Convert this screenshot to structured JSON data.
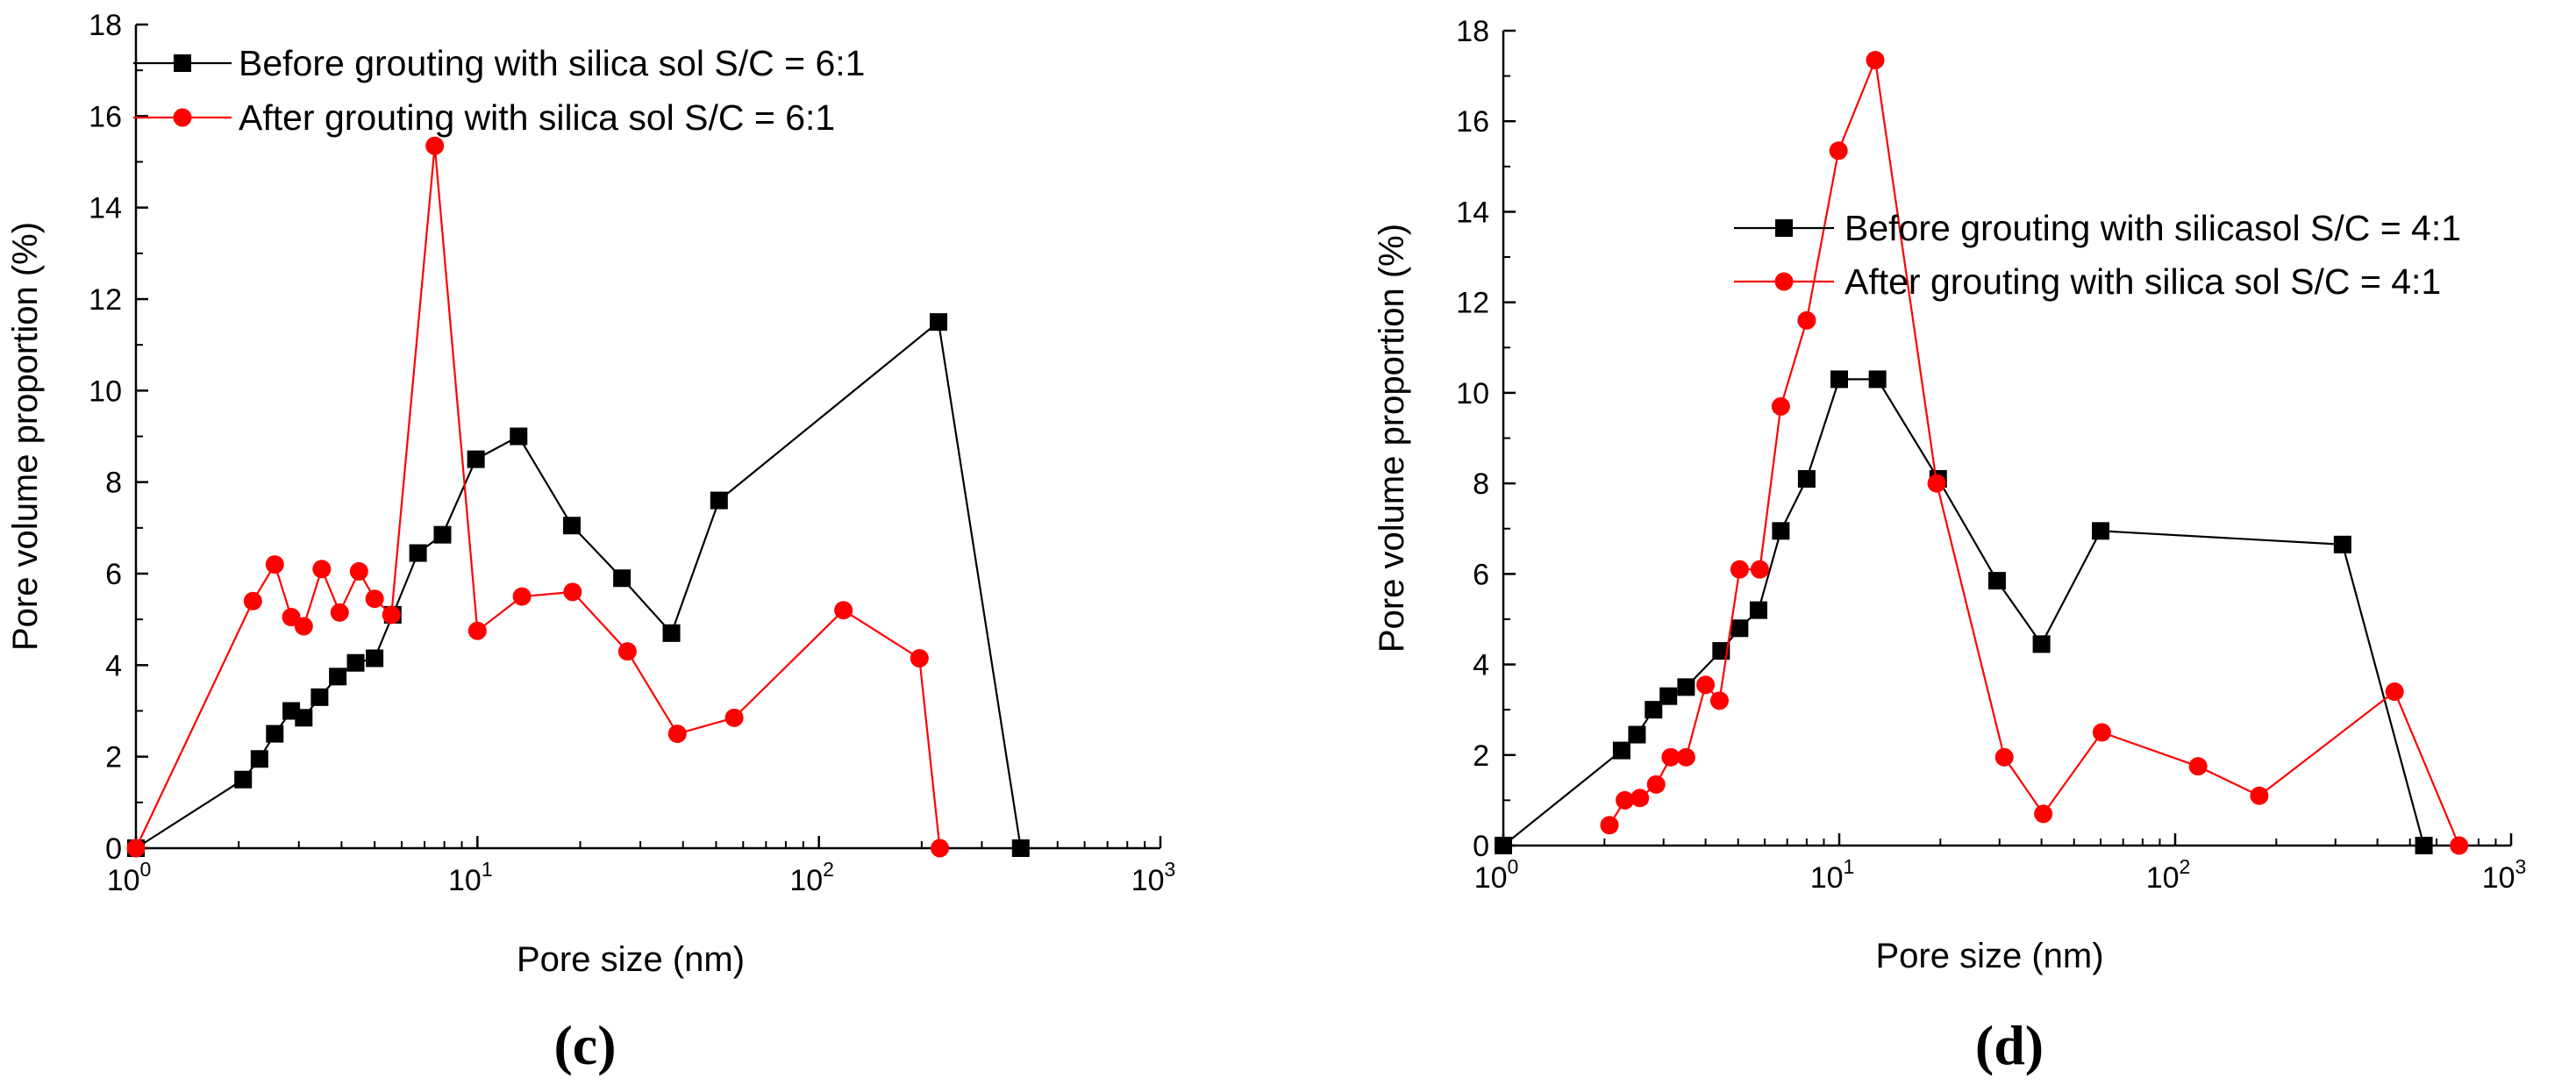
{
  "chart_data": [
    {
      "type": "line",
      "panel": "c",
      "xscale": "log",
      "xlim": [
        1,
        1000
      ],
      "ylim": [
        0,
        18
      ],
      "xlabel": "Pore size (nm)",
      "ylabel": "Pore volume proportion (%)",
      "xticks": [
        {
          "base": "10",
          "exp": "0"
        },
        {
          "base": "10",
          "exp": "1"
        },
        {
          "base": "10",
          "exp": "2"
        },
        {
          "base": "10",
          "exp": "3"
        }
      ],
      "yticks": [
        "0",
        "2",
        "4",
        "6",
        "8",
        "10",
        "12",
        "14",
        "16",
        "18"
      ],
      "legend_position": "top",
      "series": [
        {
          "name": "Before grouting with silica sol S/C = 6:1",
          "color": "#000000",
          "marker": "square",
          "points": [
            [
              1.0,
              0
            ],
            [
              2.06,
              1.5
            ],
            [
              2.3,
              1.95
            ],
            [
              2.55,
              2.5
            ],
            [
              2.85,
              3.0
            ],
            [
              3.1,
              2.85
            ],
            [
              3.45,
              3.3
            ],
            [
              3.9,
              3.75
            ],
            [
              4.4,
              4.05
            ],
            [
              5.0,
              4.15
            ],
            [
              5.65,
              5.1
            ],
            [
              6.7,
              6.45
            ],
            [
              7.9,
              6.85
            ],
            [
              9.9,
              8.5
            ],
            [
              13.2,
              9.0
            ],
            [
              18.9,
              7.05
            ],
            [
              26.5,
              5.9
            ],
            [
              37.0,
              4.7
            ],
            [
              51.0,
              7.6
            ],
            [
              224,
              11.5
            ],
            [
              390,
              0
            ]
          ]
        },
        {
          "name": "After grouting with silica sol S/C = 6:1",
          "color": "#ff0000",
          "marker": "circle",
          "points": [
            [
              1.0,
              0
            ],
            [
              2.2,
              5.4
            ],
            [
              2.55,
              6.2
            ],
            [
              2.85,
              5.05
            ],
            [
              3.1,
              4.85
            ],
            [
              3.5,
              6.1
            ],
            [
              3.95,
              5.15
            ],
            [
              4.5,
              6.05
            ],
            [
              5.0,
              5.45
            ],
            [
              5.6,
              5.1
            ],
            [
              7.5,
              15.35
            ],
            [
              10.0,
              4.75
            ],
            [
              13.5,
              5.5
            ],
            [
              19.0,
              5.6
            ],
            [
              27.5,
              4.3
            ],
            [
              38.5,
              2.5
            ],
            [
              56.5,
              2.85
            ],
            [
              118,
              5.2
            ],
            [
              197,
              4.15
            ],
            [
              226,
              0
            ]
          ]
        }
      ]
    },
    {
      "type": "line",
      "panel": "d",
      "xscale": "log",
      "xlim": [
        1,
        1000
      ],
      "ylim": [
        0,
        18
      ],
      "xlabel": "Pore size (nm)",
      "ylabel": "Pore volume proportion (%)",
      "xticks": [
        {
          "base": "10",
          "exp": "0"
        },
        {
          "base": "10",
          "exp": "1"
        },
        {
          "base": "10",
          "exp": "2"
        },
        {
          "base": "10",
          "exp": "3"
        }
      ],
      "yticks": [
        "0",
        "2",
        "4",
        "6",
        "8",
        "10",
        "12",
        "14",
        "16",
        "18"
      ],
      "legend_position": "center",
      "series": [
        {
          "name": "Before grouting with silicasol S/C = 4:1",
          "color": "#000000",
          "marker": "square",
          "points": [
            [
              1.0,
              0
            ],
            [
              2.25,
              2.1
            ],
            [
              2.5,
              2.45
            ],
            [
              2.8,
              3.0
            ],
            [
              3.1,
              3.3
            ],
            [
              3.5,
              3.5
            ],
            [
              4.45,
              4.3
            ],
            [
              5.05,
              4.8
            ],
            [
              5.75,
              5.2
            ],
            [
              6.7,
              6.95
            ],
            [
              8.0,
              8.1
            ],
            [
              10.0,
              10.3
            ],
            [
              13.0,
              10.3
            ],
            [
              19.7,
              8.1
            ],
            [
              29.5,
              5.85
            ],
            [
              40.0,
              4.45
            ],
            [
              60.0,
              6.95
            ],
            [
              315,
              6.65
            ],
            [
              550,
              0
            ]
          ]
        },
        {
          "name": "After grouting with silica sol S/C = 4:1",
          "color": "#ff0000",
          "marker": "circle",
          "points": [
            [
              2.07,
              0.45
            ],
            [
              2.3,
              1.0
            ],
            [
              2.55,
              1.05
            ],
            [
              2.85,
              1.35
            ],
            [
              3.15,
              1.95
            ],
            [
              3.5,
              1.95
            ],
            [
              4.0,
              3.55
            ],
            [
              4.4,
              3.2
            ],
            [
              5.05,
              6.1
            ],
            [
              5.8,
              6.1
            ],
            [
              6.7,
              9.7
            ],
            [
              8.0,
              11.6
            ],
            [
              9.95,
              15.35
            ],
            [
              12.8,
              17.35
            ],
            [
              19.5,
              8.0
            ],
            [
              31.0,
              1.95
            ],
            [
              40.5,
              0.7
            ],
            [
              60.5,
              2.5
            ],
            [
              117,
              1.75
            ],
            [
              178,
              1.1
            ],
            [
              450,
              3.4
            ],
            [
              700,
              0
            ]
          ]
        }
      ]
    }
  ],
  "panel_labels": [
    "(c)",
    "(d)"
  ]
}
